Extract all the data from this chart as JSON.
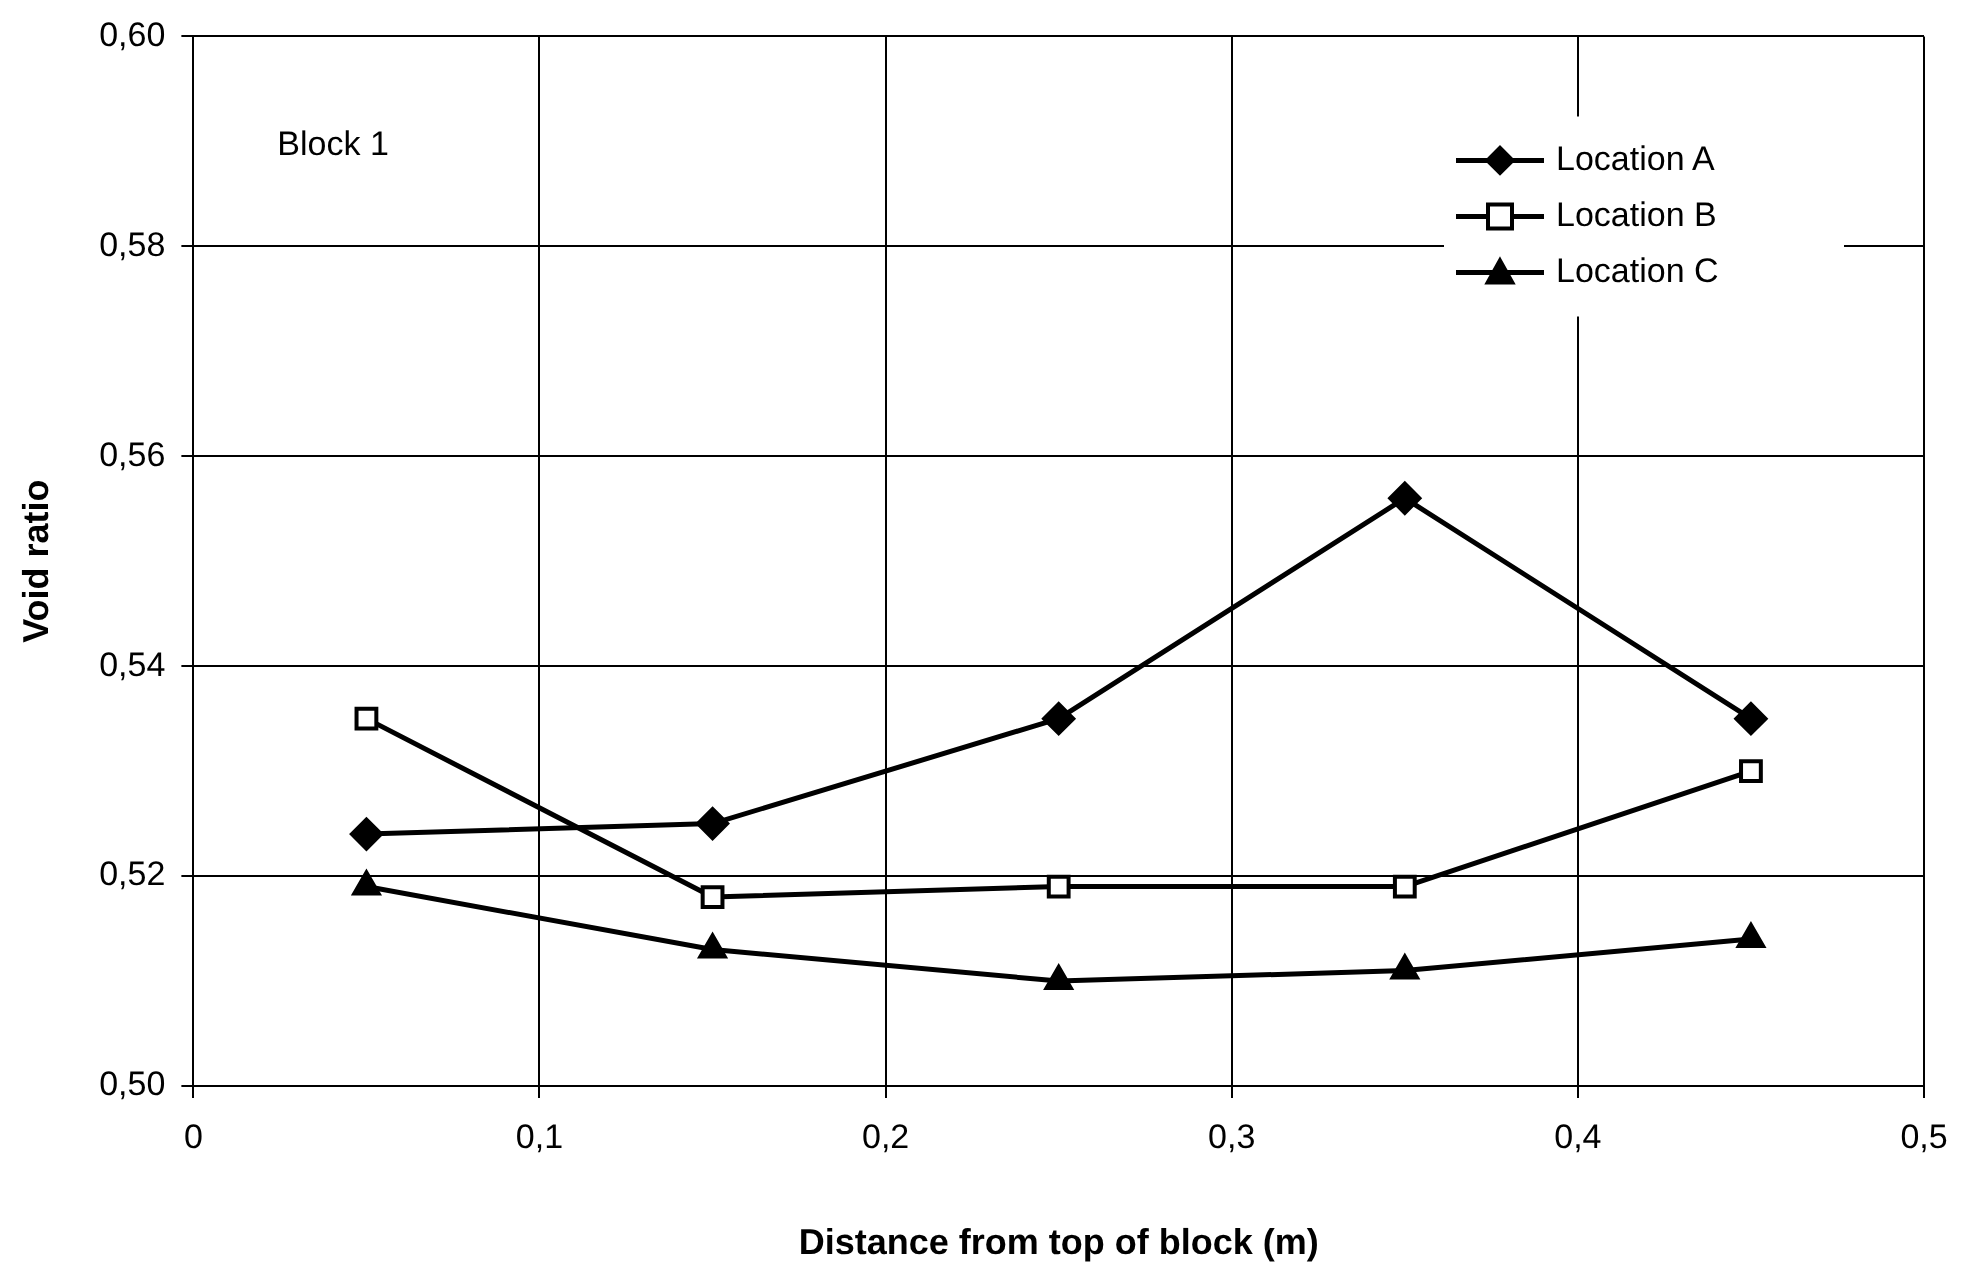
{
  "chart_data": {
    "type": "line",
    "xlabel": "Distance from top of block (m)",
    "ylabel": "Void ratio",
    "annotations": [
      "Block 1"
    ],
    "x": [
      0.05,
      0.15,
      0.25,
      0.35,
      0.45
    ],
    "series": [
      {
        "name": "Location A",
        "color": "#000000",
        "marker": "diamond",
        "values": [
          0.524,
          0.525,
          0.535,
          0.556,
          0.535
        ]
      },
      {
        "name": "Location B",
        "color": "#000000",
        "marker": "square",
        "values": [
          0.535,
          0.518,
          0.519,
          0.519,
          0.53
        ]
      },
      {
        "name": "Location C",
        "color": "#000000",
        "marker": "triangle",
        "values": [
          0.519,
          0.513,
          0.51,
          0.511,
          0.514
        ]
      }
    ],
    "xlim": [
      0,
      0.5
    ],
    "ylim": [
      0.5,
      0.6
    ],
    "xticks": [
      0,
      {
        "value": 0.1,
        "label": "0,1"
      },
      {
        "value": 0.2,
        "label": "0,2"
      },
      {
        "value": 0.3,
        "label": "0,3"
      },
      {
        "value": 0.4,
        "label": "0,4"
      },
      {
        "value": 0.5,
        "label": "0,5"
      }
    ],
    "yticks": [
      {
        "value": 0.5,
        "label": "0,50"
      },
      {
        "value": 0.52,
        "label": "0,52"
      },
      {
        "value": 0.54,
        "label": "0,54"
      },
      {
        "value": 0.56,
        "label": "0,56"
      },
      {
        "value": 0.58,
        "label": "0,58"
      },
      {
        "value": 0.6,
        "label": "0,60"
      }
    ],
    "grid": true,
    "legend": "top right",
    "line_style": "solid"
  }
}
